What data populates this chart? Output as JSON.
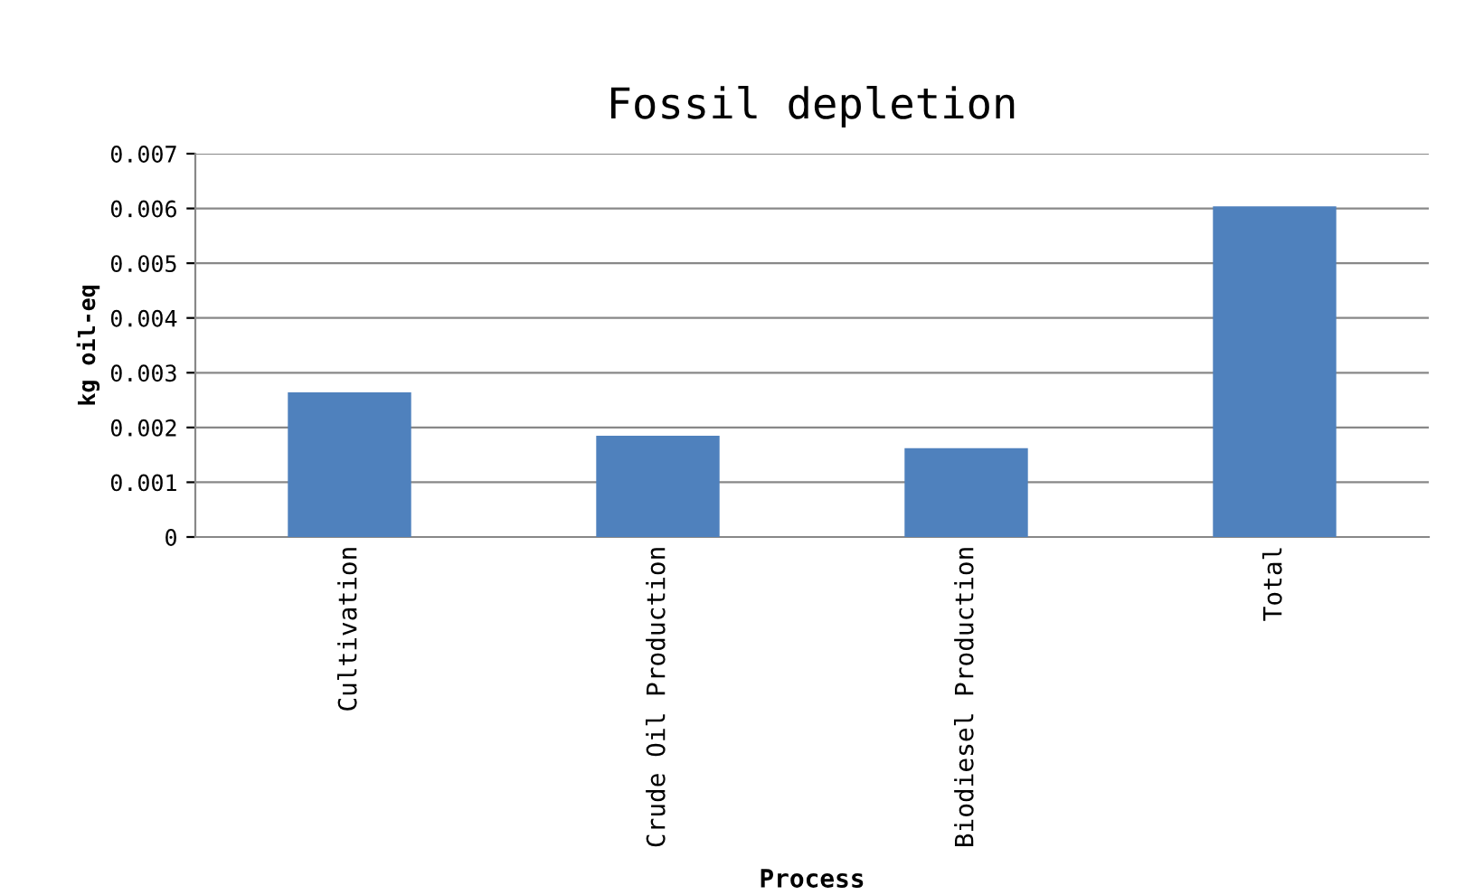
{
  "chart_data": {
    "type": "bar",
    "title": "Fossil depletion",
    "xlabel": "Process",
    "ylabel": "kg oil-eq",
    "categories": [
      "Cultivation",
      "Crude Oil Production",
      "Biodiesel Production",
      "Total"
    ],
    "values": [
      0.00264,
      0.00185,
      0.00162,
      0.00604
    ],
    "color": "#4f81bd",
    "ylim": [
      0,
      0.007
    ],
    "yticks": [
      0,
      0.001,
      0.002,
      0.003,
      0.004,
      0.005,
      0.006,
      0.007
    ],
    "grid": "y",
    "legend": false
  }
}
